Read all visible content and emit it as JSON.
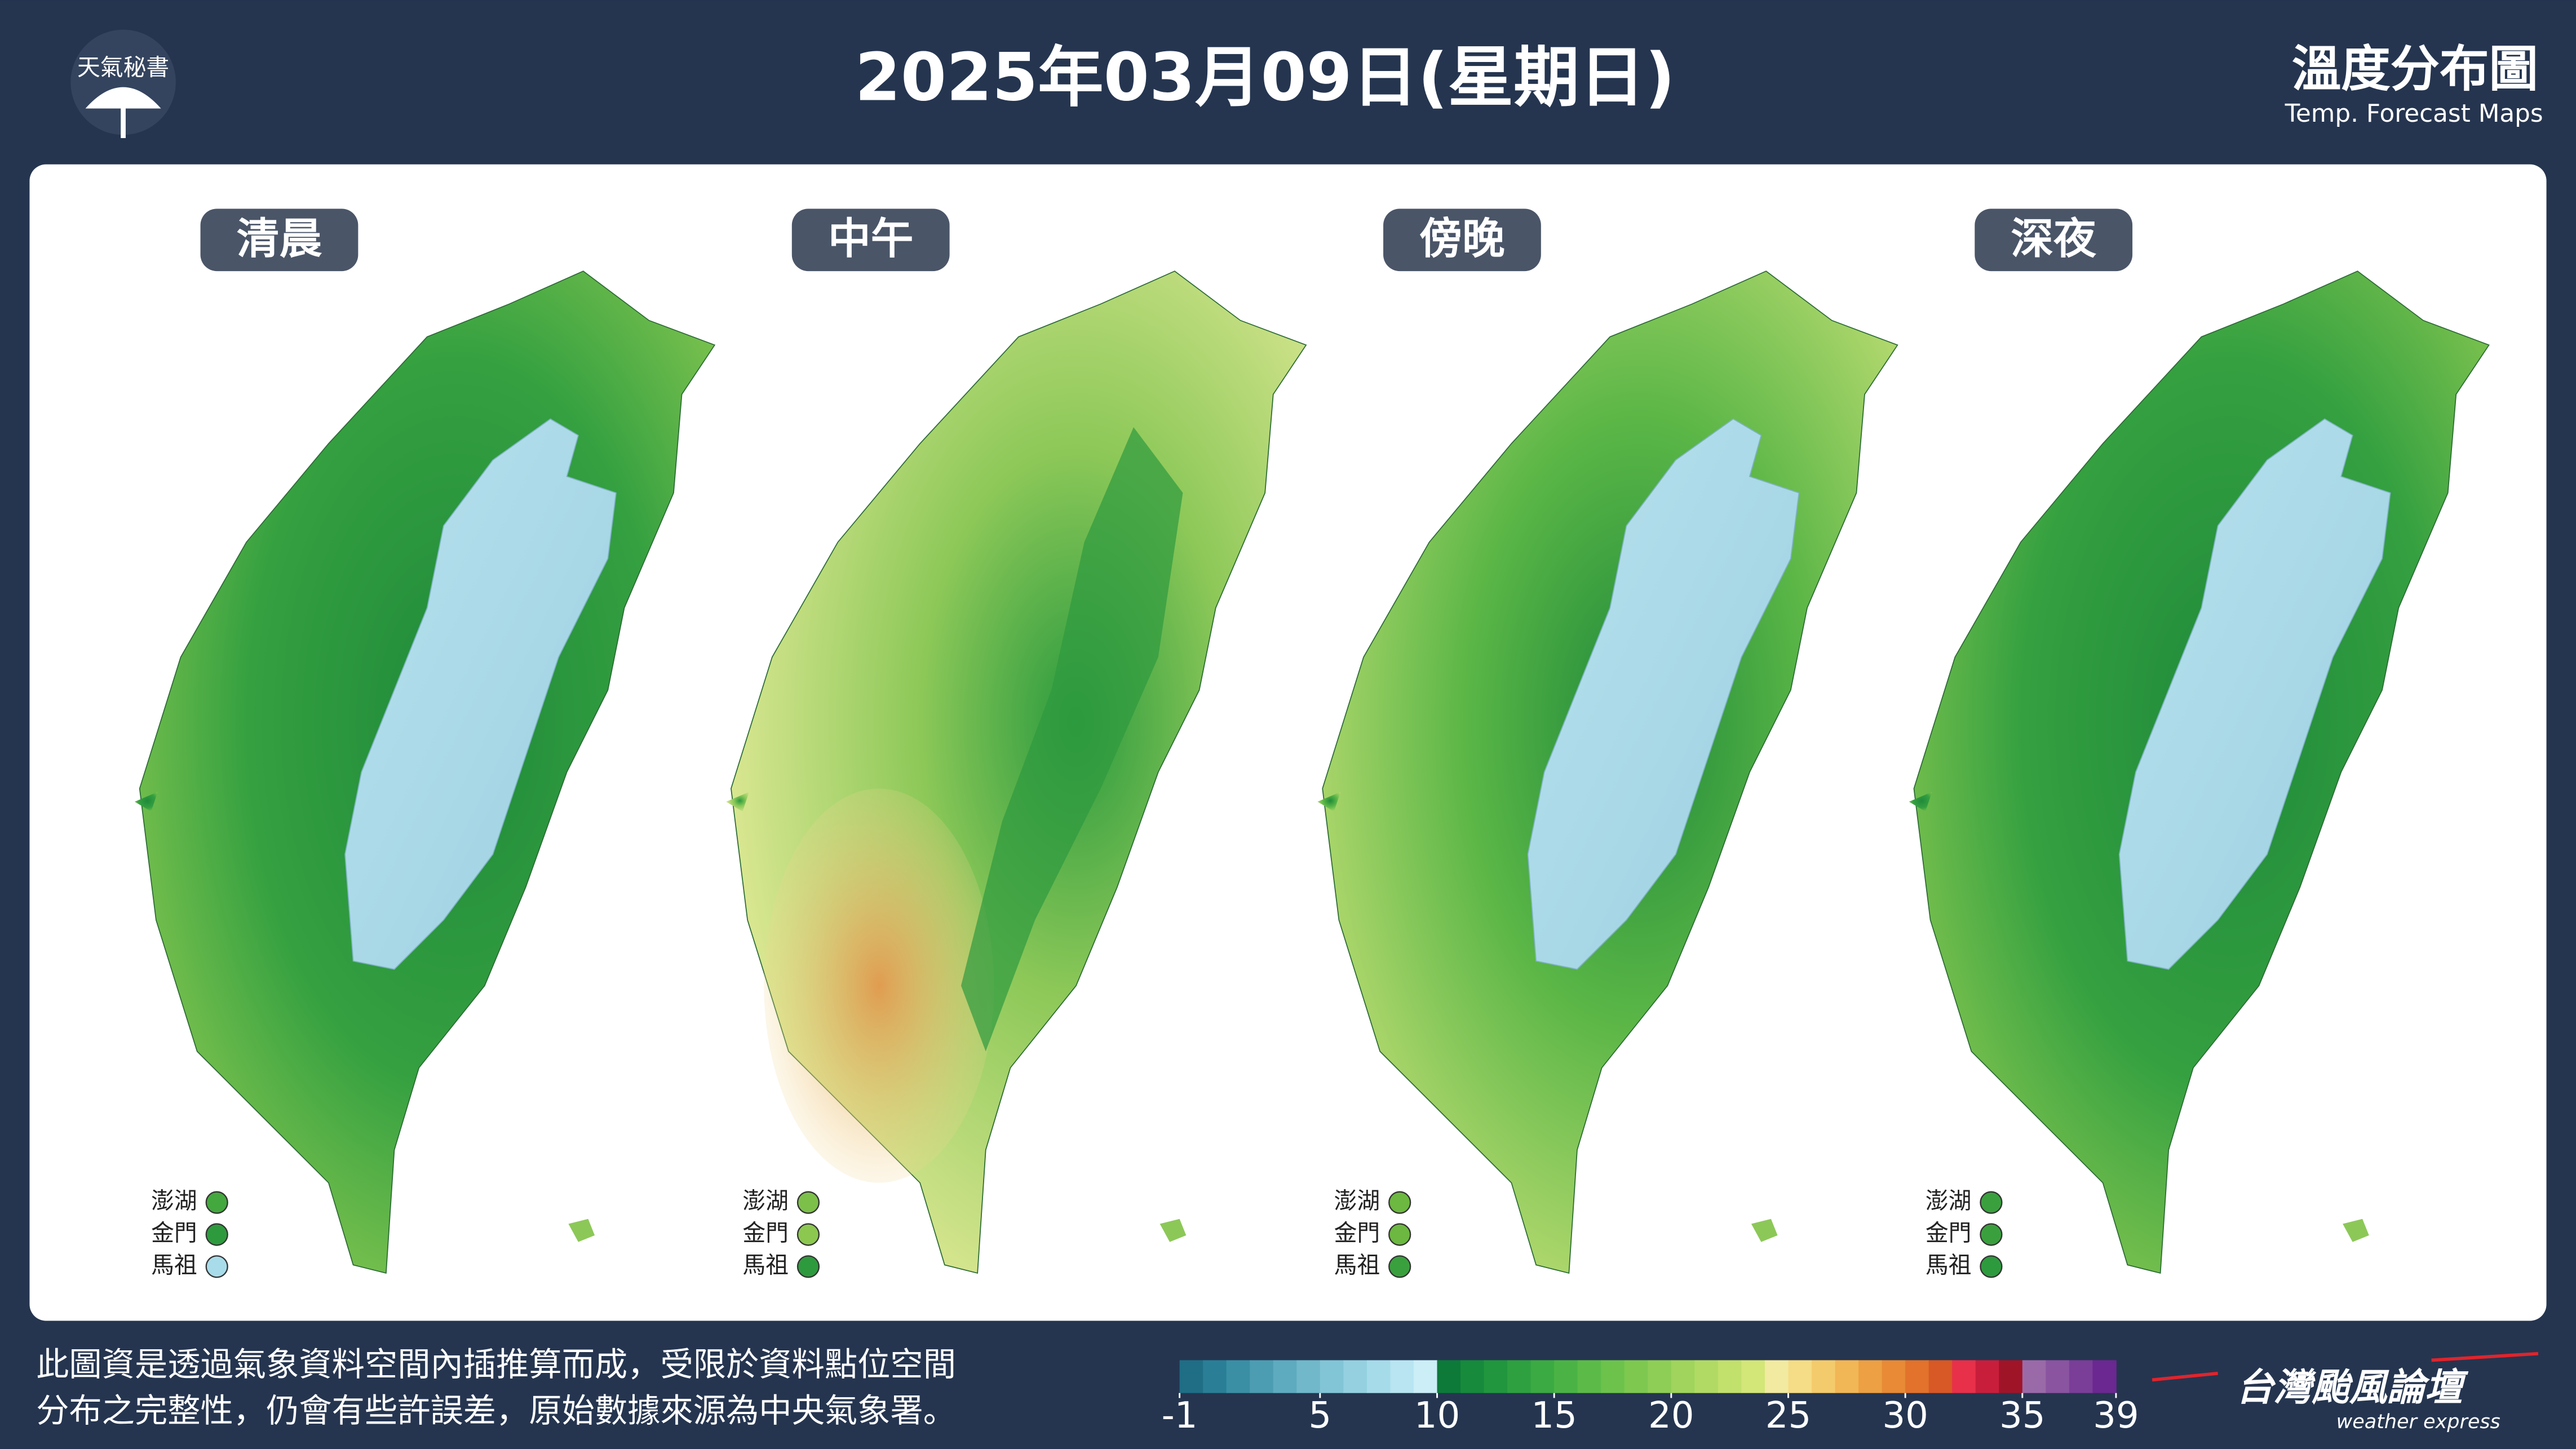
{
  "header": {
    "brand": "天氣秘書",
    "title": "2025年03月09日(星期日)",
    "map_title": "溫度分布圖",
    "map_subtitle": "Temp. Forecast Maps"
  },
  "panels": [
    {
      "label": "清晨",
      "islands": [
        {
          "name": "澎湖",
          "color": "#43a83e"
        },
        {
          "name": "金門",
          "color": "#2e9a3e"
        },
        {
          "name": "馬祖",
          "color": "#a8dcea"
        }
      ]
    },
    {
      "label": "中午",
      "islands": [
        {
          "name": "澎湖",
          "color": "#7cc04a"
        },
        {
          "name": "金門",
          "color": "#8cc850"
        },
        {
          "name": "馬祖",
          "color": "#2e9a3e"
        }
      ]
    },
    {
      "label": "傍晚",
      "islands": [
        {
          "name": "澎湖",
          "color": "#6cb840"
        },
        {
          "name": "金門",
          "color": "#6cb840"
        },
        {
          "name": "馬祖",
          "color": "#3aa03e"
        }
      ]
    },
    {
      "label": "深夜",
      "islands": [
        {
          "name": "澎湖",
          "color": "#3aa03e"
        },
        {
          "name": "金門",
          "color": "#3aa03e"
        },
        {
          "name": "馬祖",
          "color": "#2e9a3e"
        }
      ]
    }
  ],
  "footer": {
    "note": [
      "此圖資是透過氣象資料空間內插推算而成，受限於資料點位空間",
      "分布之完整性，仍會有些許誤差，原始數據來源為中央氣象署。"
    ],
    "colorbar": {
      "range": [
        -1,
        39
      ],
      "ticks": [
        -1,
        5,
        10,
        15,
        20,
        25,
        30,
        35,
        39
      ],
      "colors": [
        "#1f6e86",
        "#2a7f96",
        "#3a8fa5",
        "#4c9db2",
        "#5eabbf",
        "#70b8ca",
        "#82c5d6",
        "#94d0e0",
        "#a6dbe9",
        "#b8e5f1",
        "#cbeef7",
        "#0d7a3a",
        "#178a3c",
        "#21963e",
        "#2ea040",
        "#3caa42",
        "#4bb345",
        "#5cbb48",
        "#6dc24c",
        "#7ec850",
        "#8fce56",
        "#a0d45c",
        "#b1da64",
        "#c2e06c",
        "#d3e678",
        "#f2eaa0",
        "#f5dc86",
        "#f4cb6c",
        "#f1b656",
        "#eda044",
        "#e88a36",
        "#e2722c",
        "#d85826",
        "#e8304a",
        "#c81e3c",
        "#a01428",
        "#9a6aa8",
        "#8a54a0",
        "#7a3e98",
        "#6a2890"
      ]
    },
    "brand": "台灣颱風論壇",
    "brand_subtitle": "weather express"
  }
}
